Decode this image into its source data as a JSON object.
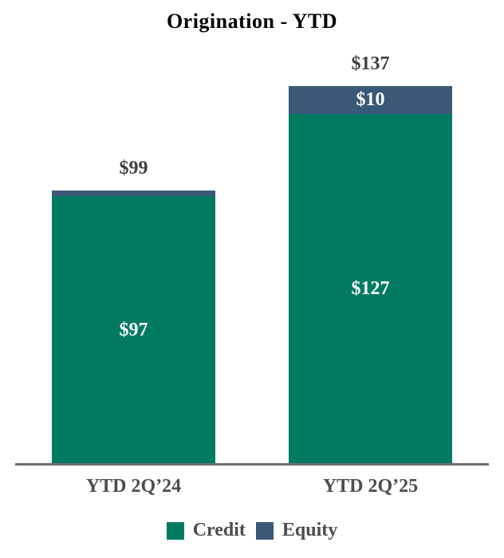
{
  "chart_data": {
    "type": "bar",
    "stacked": true,
    "title": "Origination - YTD",
    "categories": [
      "YTD 2Q’24",
      "YTD 2Q’25"
    ],
    "series": [
      {
        "name": "Credit",
        "color": "#007b62",
        "values": [
          97,
          127
        ],
        "labels": [
          "$97",
          "$127"
        ]
      },
      {
        "name": "Equity",
        "color": "#3a5878",
        "values": [
          2,
          10
        ],
        "labels": [
          "",
          "$10"
        ]
      }
    ],
    "totals": [
      99,
      137
    ],
    "total_labels": [
      "$99",
      "$137"
    ],
    "ylim": [
      0,
      150
    ],
    "grid": false,
    "legend_position": "bottom",
    "legend": [
      "Credit",
      "Equity"
    ],
    "colors": {
      "credit": "#007b62",
      "equity": "#3a5878",
      "title_text": "#000000",
      "total_label_text": "#3f3f3f",
      "axis_label_text": "#4d4d4d",
      "axis_line": "#6e6e6e",
      "segment_label_text": "#ffffff"
    }
  }
}
